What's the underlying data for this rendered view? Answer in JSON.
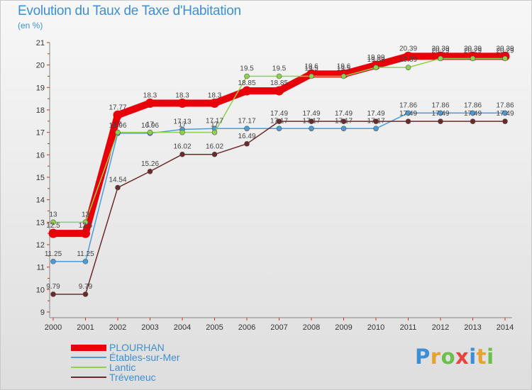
{
  "title": "Evolution du Taux de Taxe d'Habitation",
  "subtitle": "(en %)",
  "logo": {
    "letters": [
      "P",
      "r",
      "o",
      "x",
      "i",
      "t",
      "i"
    ],
    "colors": [
      "#3c8fd6",
      "#e8a230",
      "#6cc04a",
      "#e8433c",
      "#3c8fd6",
      "#e8a230",
      "#6cc04a"
    ]
  },
  "chart_data": {
    "type": "line",
    "x": [
      "2000",
      "2001",
      "2002",
      "2003",
      "2004",
      "2005",
      "2006",
      "2007",
      "2008",
      "2009",
      "2010",
      "2011",
      "2012",
      "2013",
      "2014"
    ],
    "ylim": [
      9,
      21
    ],
    "yticks": [
      "9",
      "10",
      "11",
      "12",
      "13",
      "14",
      "15",
      "16",
      "17",
      "18",
      "19",
      "20",
      "21"
    ],
    "grid": false,
    "legend_position": "bottom-left",
    "series": [
      {
        "name": "PLOURHAN",
        "color": "#e8000b",
        "values": [
          12.5,
          12.5,
          17.77,
          18.3,
          18.3,
          18.3,
          18.85,
          18.85,
          19.6,
          19.6,
          19.99,
          20.39,
          20.39,
          20.39,
          20.39
        ],
        "labels": [
          "12.5",
          "12.5",
          "17.77",
          "18.3",
          "18.3",
          "18.3",
          "18.85",
          "18.85",
          "19.6",
          "19.6",
          "19.99",
          "20.39",
          "20.39",
          "20.39",
          "20.39"
        ]
      },
      {
        "name": "Étables-sur-Mer",
        "color": "#4a9bd9",
        "values": [
          11.25,
          11.25,
          16.96,
          16.96,
          17.13,
          17.17,
          17.17,
          17.17,
          17.17,
          17.17,
          17.17,
          17.86,
          17.86,
          17.86,
          17.86
        ],
        "labels": [
          "11.25",
          "11.25",
          "16.96",
          "16.96",
          "17.13",
          "17.17",
          "17.17",
          "17.17",
          "17.17",
          "17.17",
          "17.17",
          "17.86",
          "17.86",
          "17.86",
          "17.86"
        ]
      },
      {
        "name": "Lantic",
        "color": "#8fd14f",
        "values": [
          13,
          13,
          17,
          17,
          17,
          17,
          19.5,
          19.5,
          19.5,
          19.5,
          19.89,
          19.89,
          20.29,
          20.29,
          20.29
        ],
        "labels": [
          "13",
          "13",
          "17",
          "17",
          "17",
          "17",
          "19.5",
          "19.5",
          "19.5",
          "19.5",
          "19.89",
          "19.89",
          "20.29",
          "20.29",
          "20.29"
        ]
      },
      {
        "name": "Tréveneuc",
        "color": "#6b2a2a",
        "values": [
          9.79,
          9.79,
          14.54,
          15.26,
          16.02,
          16.02,
          16.49,
          17.49,
          17.49,
          17.49,
          17.49,
          17.49,
          17.49,
          17.49,
          17.49
        ],
        "labels": [
          "9.79",
          "9.79",
          "14.54",
          "15.26",
          "16.02",
          "16.02",
          "16.49",
          "17.49",
          "17.49",
          "17.49",
          "17.49",
          "17.49",
          "17.49",
          "17.49",
          "17.49"
        ]
      }
    ]
  }
}
